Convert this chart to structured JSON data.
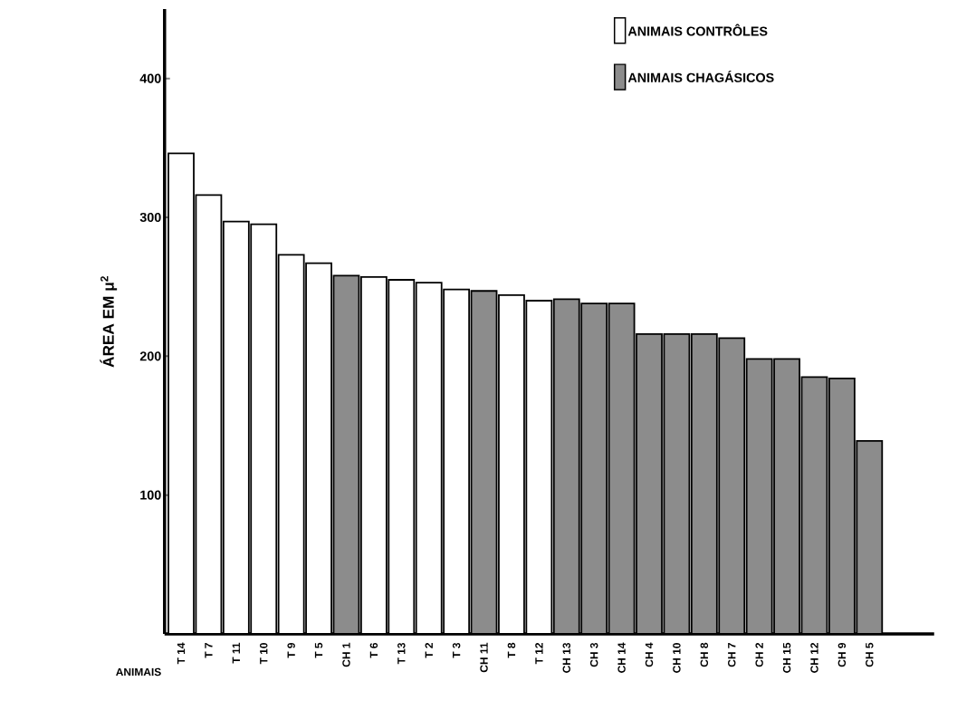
{
  "chart_data": {
    "type": "bar",
    "xlabel": "ANIMAIS",
    "ylabel": "ÁREA EM μ$^{2}$",
    "categories": [
      "T 14",
      "T 7",
      "T 11",
      "T 10",
      "T 9",
      "T 5",
      "CH 1",
      "T 6",
      "T 13",
      "T 2",
      "T 3",
      "CH 11",
      "T 8",
      "T 12",
      "CH 13",
      "CH 3",
      "CH 14",
      "CH 4",
      "CH 10",
      "CH 8",
      "CH 7",
      "CH 2",
      "CH 15",
      "CH 12",
      "CH 9",
      "CH 5"
    ],
    "series": [
      {
        "name": "ANIMAIS CONTRÔLES",
        "color": "#ffffff",
        "values": [
          346,
          316,
          297,
          295,
          273,
          267,
          null,
          257,
          255,
          253,
          248,
          null,
          244,
          240,
          null,
          null,
          null,
          null,
          null,
          null,
          null,
          null,
          null,
          null,
          null,
          null
        ]
      },
      {
        "name": "ANIMAIS CHAGÁSICOS",
        "color": "#8c8c8c",
        "values": [
          null,
          null,
          null,
          null,
          null,
          null,
          258,
          null,
          null,
          null,
          null,
          247,
          null,
          null,
          241,
          238,
          238,
          216,
          216,
          216,
          213,
          198,
          198,
          185,
          184,
          139
        ]
      }
    ],
    "ylim": [
      0,
      450
    ],
    "yticks": [
      100,
      200,
      300,
      400
    ],
    "grid": false,
    "legend": "top right"
  }
}
